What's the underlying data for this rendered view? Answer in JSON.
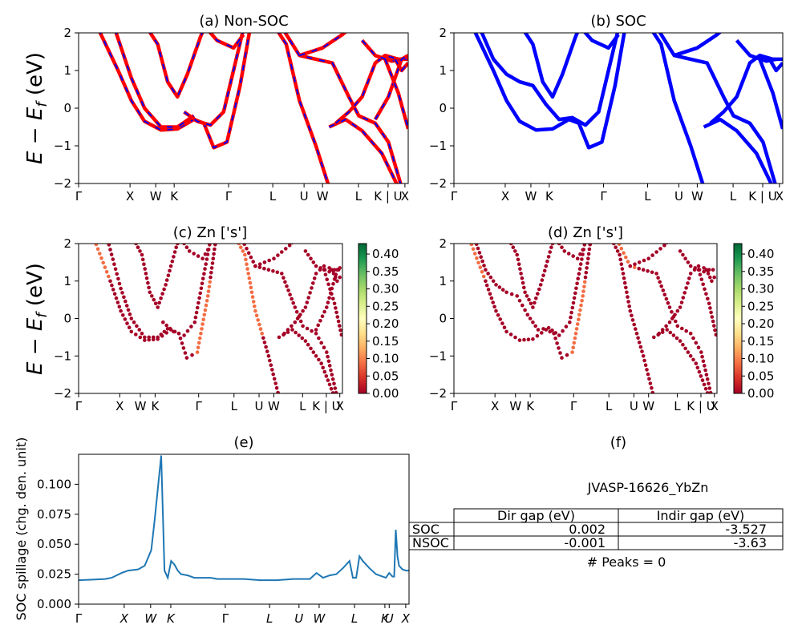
{
  "chart_data": [
    {
      "panel": "a",
      "type": "line",
      "title": "(a) Non-SOC",
      "ylabel": "E − E_f (eV)",
      "ylim": [
        -2,
        2
      ],
      "yticks": [
        "−2",
        "−1",
        "0",
        "1",
        "2"
      ],
      "xticks": [
        "Γ",
        "X",
        "W",
        "K",
        "Γ",
        "L",
        "U",
        "W",
        "L",
        "K | U",
        "X"
      ],
      "series": [
        {
          "style": "red solid with blue dashes",
          "color_primary": "#ff0000",
          "color_secondary": "#0000ff"
        }
      ],
      "bands": [
        [
          [
            0.06,
            2.1
          ],
          [
            0.12,
            1.0
          ],
          [
            0.16,
            0.2
          ],
          [
            0.2,
            -0.35
          ],
          [
            0.25,
            -0.58
          ],
          [
            0.3,
            -0.55
          ],
          [
            0.35,
            -0.3
          ],
          [
            0.38,
            -0.4
          ],
          [
            0.41,
            -1.05
          ],
          [
            0.45,
            -0.9
          ],
          [
            0.49,
            0.6
          ],
          [
            0.52,
            2.1
          ]
        ],
        [
          [
            0.11,
            2.1
          ],
          [
            0.16,
            0.8
          ],
          [
            0.2,
            0.0
          ],
          [
            0.25,
            -0.5
          ],
          [
            0.3,
            -0.5
          ],
          [
            0.35,
            -0.2
          ]
        ],
        [
          [
            0.21,
            2.1
          ],
          [
            0.24,
            1.7
          ],
          [
            0.27,
            0.7
          ],
          [
            0.3,
            0.3
          ],
          [
            0.33,
            0.9
          ],
          [
            0.37,
            1.9
          ],
          [
            0.38,
            2.1
          ]
        ],
        [
          [
            0.32,
            -0.1
          ],
          [
            0.36,
            -0.35
          ],
          [
            0.4,
            -0.45
          ],
          [
            0.44,
            -0.1
          ],
          [
            0.5,
            2.1
          ]
        ],
        [
          [
            0.39,
            2.1
          ],
          [
            0.42,
            1.8
          ],
          [
            0.47,
            1.6
          ],
          [
            0.5,
            1.95
          ]
        ],
        [
          [
            0.6,
            2.1
          ],
          [
            0.63,
            1.7
          ],
          [
            0.67,
            0.2
          ],
          [
            0.72,
            -1.0
          ],
          [
            0.76,
            -2.1
          ]
        ],
        [
          [
            0.62,
            2.1
          ],
          [
            0.67,
            1.4
          ],
          [
            0.72,
            1.3
          ],
          [
            0.77,
            1.2
          ],
          [
            0.82,
            0.3
          ],
          [
            0.85,
            -0.2
          ],
          [
            0.9,
            -0.4
          ],
          [
            0.94,
            -0.9
          ],
          [
            0.98,
            -2.1
          ]
        ],
        [
          [
            0.67,
            1.4
          ],
          [
            0.74,
            1.6
          ],
          [
            0.8,
            1.95
          ],
          [
            0.82,
            2.1
          ]
        ],
        [
          [
            0.76,
            -0.5
          ],
          [
            0.81,
            -0.3
          ],
          [
            0.86,
            -0.6
          ],
          [
            0.92,
            -1.2
          ],
          [
            0.97,
            -2.1
          ]
        ],
        [
          [
            0.78,
            -0.4
          ],
          [
            0.82,
            -0.1
          ],
          [
            0.86,
            0.3
          ],
          [
            0.9,
            1.2
          ],
          [
            0.93,
            1.4
          ],
          [
            0.97,
            1.3
          ],
          [
            1.0,
            1.3
          ]
        ],
        [
          [
            0.86,
            1.8
          ],
          [
            0.9,
            1.4
          ],
          [
            0.95,
            1.25
          ],
          [
            0.98,
            1.3
          ]
        ],
        [
          [
            0.9,
            -0.3
          ],
          [
            0.94,
            0.3
          ],
          [
            0.98,
            1.3
          ],
          [
            1.0,
            1.4
          ]
        ],
        [
          [
            0.93,
            1.3
          ],
          [
            0.97,
            0.4
          ],
          [
            1.0,
            -0.55
          ]
        ],
        [
          [
            0.96,
            1.3
          ],
          [
            0.98,
            1.0
          ],
          [
            1.0,
            1.2
          ]
        ]
      ]
    },
    {
      "panel": "b",
      "type": "line",
      "title": "(b) SOC",
      "ylim": [
        -2,
        2
      ],
      "yticks": [
        "−2",
        "−1",
        "0",
        "1",
        "2"
      ],
      "xticks": [
        "Γ",
        "X",
        "W",
        "K",
        "Γ",
        "L",
        "U",
        "W",
        "L",
        "K | U",
        "X"
      ],
      "series": [
        {
          "style": "blue solid",
          "color_primary": "#0000ff"
        }
      ],
      "bands": [
        [
          [
            0.06,
            2.1
          ],
          [
            0.12,
            1.0
          ],
          [
            0.16,
            0.2
          ],
          [
            0.2,
            -0.35
          ],
          [
            0.25,
            -0.58
          ],
          [
            0.3,
            -0.55
          ],
          [
            0.35,
            -0.3
          ],
          [
            0.38,
            -0.4
          ],
          [
            0.41,
            -1.05
          ],
          [
            0.45,
            -0.9
          ],
          [
            0.49,
            0.6
          ],
          [
            0.52,
            2.1
          ]
        ],
        [
          [
            0.08,
            2.1
          ],
          [
            0.12,
            1.3
          ],
          [
            0.16,
            0.9
          ],
          [
            0.2,
            0.7
          ],
          [
            0.24,
            0.6
          ],
          [
            0.28,
            0.1
          ],
          [
            0.32,
            -0.3
          ],
          [
            0.36,
            -0.25
          ],
          [
            0.4,
            -0.45
          ],
          [
            0.44,
            -0.1
          ],
          [
            0.5,
            2.1
          ]
        ],
        [
          [
            0.21,
            2.1
          ],
          [
            0.24,
            1.7
          ],
          [
            0.27,
            0.7
          ],
          [
            0.3,
            0.3
          ],
          [
            0.33,
            0.9
          ],
          [
            0.37,
            1.9
          ],
          [
            0.38,
            2.1
          ]
        ],
        [
          [
            0.39,
            2.1
          ],
          [
            0.42,
            1.8
          ],
          [
            0.47,
            1.6
          ],
          [
            0.5,
            1.95
          ]
        ],
        [
          [
            0.6,
            2.1
          ],
          [
            0.63,
            1.7
          ],
          [
            0.67,
            0.2
          ],
          [
            0.72,
            -1.0
          ],
          [
            0.76,
            -2.1
          ]
        ],
        [
          [
            0.62,
            2.1
          ],
          [
            0.67,
            1.4
          ],
          [
            0.72,
            1.3
          ],
          [
            0.77,
            1.2
          ],
          [
            0.82,
            0.3
          ],
          [
            0.85,
            -0.2
          ],
          [
            0.9,
            -0.4
          ],
          [
            0.94,
            -0.9
          ],
          [
            0.98,
            -2.1
          ]
        ],
        [
          [
            0.67,
            1.4
          ],
          [
            0.74,
            1.6
          ],
          [
            0.8,
            1.95
          ],
          [
            0.82,
            2.1
          ]
        ],
        [
          [
            0.76,
            -0.5
          ],
          [
            0.81,
            -0.3
          ],
          [
            0.86,
            -0.6
          ],
          [
            0.92,
            -1.2
          ],
          [
            0.97,
            -2.1
          ]
        ],
        [
          [
            0.78,
            -0.4
          ],
          [
            0.82,
            -0.1
          ],
          [
            0.86,
            0.3
          ],
          [
            0.9,
            1.2
          ],
          [
            0.93,
            1.4
          ],
          [
            0.97,
            1.3
          ],
          [
            1.0,
            1.3
          ]
        ],
        [
          [
            0.86,
            1.8
          ],
          [
            0.9,
            1.4
          ],
          [
            0.95,
            1.25
          ],
          [
            0.98,
            1.3
          ]
        ],
        [
          [
            0.93,
            1.3
          ],
          [
            0.97,
            0.4
          ],
          [
            1.0,
            -0.55
          ]
        ],
        [
          [
            0.96,
            1.3
          ],
          [
            0.98,
            1.0
          ],
          [
            1.0,
            1.2
          ]
        ]
      ]
    },
    {
      "panel": "c",
      "type": "scatter",
      "title": "(c)  Zn ['s']",
      "ylabel": "E − E_f (eV)",
      "ylim": [
        -2,
        2
      ],
      "yticks": [
        "−2",
        "−1",
        "0",
        "1",
        "2"
      ],
      "xticks": [
        "Γ",
        "X",
        "W",
        "K",
        "Γ",
        "L",
        "U",
        "W",
        "L",
        "K | U",
        "X"
      ],
      "colorbar": {
        "cmap": "RdYlGn",
        "min": 0.0,
        "max": 0.43,
        "ticks": [
          "0.00",
          "0.05",
          "0.10",
          "0.15",
          "0.20",
          "0.25",
          "0.30",
          "0.35",
          "0.40"
        ]
      },
      "point_colors": {
        "dark": "#a50026",
        "light": "#f46d43"
      }
    },
    {
      "panel": "d",
      "type": "scatter",
      "title": "(d) Zn ['s']",
      "ylim": [
        -2,
        2
      ],
      "yticks": [
        "−2",
        "−1",
        "0",
        "1",
        "2"
      ],
      "xticks": [
        "Γ",
        "X",
        "W",
        "K",
        "Γ",
        "L",
        "U",
        "W",
        "L",
        "K | U",
        "X"
      ],
      "colorbar": {
        "cmap": "RdYlGn",
        "min": 0.0,
        "max": 0.43,
        "ticks": [
          "0.00",
          "0.05",
          "0.10",
          "0.15",
          "0.20",
          "0.25",
          "0.30",
          "0.35",
          "0.40"
        ]
      },
      "point_colors": {
        "dark": "#a50026",
        "light": "#f46d43"
      }
    },
    {
      "panel": "e",
      "type": "line",
      "title": "(e)",
      "ylabel": "SOC spillage (chg. den. unit)",
      "ylim": [
        0,
        0.125
      ],
      "yticks": [
        "0.000",
        "0.025",
        "0.050",
        "0.075",
        "0.100"
      ],
      "xticks": [
        "Γ",
        "X",
        "W",
        "K",
        "Γ",
        "L",
        "U",
        "W",
        "L",
        "K",
        "U",
        "X"
      ],
      "color": "#1f77b4",
      "x": [
        0,
        0.05,
        0.08,
        0.1,
        0.13,
        0.15,
        0.18,
        0.2,
        0.22,
        0.23,
        0.25,
        0.26,
        0.27,
        0.28,
        0.29,
        0.3,
        0.31,
        0.33,
        0.35,
        0.37,
        0.4,
        0.42,
        0.45,
        0.5,
        0.55,
        0.6,
        0.65,
        0.7,
        0.72,
        0.74,
        0.75,
        0.76,
        0.78,
        0.8,
        0.82,
        0.83,
        0.84,
        0.85,
        0.86,
        0.88,
        0.9,
        0.92,
        0.93,
        0.935,
        0.94,
        0.95,
        0.955,
        0.96,
        0.965,
        0.97,
        0.98,
        0.99,
        1.0
      ],
      "values": [
        0.02,
        0.0205,
        0.021,
        0.022,
        0.026,
        0.028,
        0.029,
        0.032,
        0.045,
        0.07,
        0.124,
        0.028,
        0.022,
        0.036,
        0.033,
        0.028,
        0.025,
        0.024,
        0.022,
        0.022,
        0.022,
        0.021,
        0.021,
        0.021,
        0.02,
        0.02,
        0.021,
        0.021,
        0.026,
        0.022,
        0.023,
        0.024,
        0.025,
        0.03,
        0.036,
        0.022,
        0.022,
        0.04,
        0.036,
        0.03,
        0.025,
        0.023,
        0.022,
        0.024,
        0.026,
        0.023,
        0.023,
        0.062,
        0.04,
        0.032,
        0.029,
        0.028,
        0.028
      ]
    },
    {
      "panel": "f",
      "type": "table",
      "title": "(f)",
      "caption": "JVASP-16626_YbZn",
      "columns": [
        "Dir gap (eV)",
        "Indir gap (eV)"
      ],
      "rows": [
        {
          "label": "SOC",
          "values": [
            "0.002",
            "-3.527"
          ]
        },
        {
          "label": "NSOC",
          "values": [
            "-0.001",
            "-3.63"
          ]
        }
      ],
      "note": "# Peaks = 0"
    }
  ]
}
